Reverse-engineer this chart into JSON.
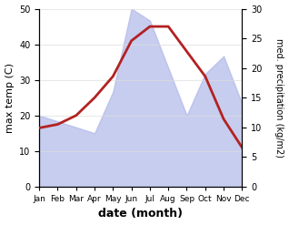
{
  "months": [
    "Jan",
    "Feb",
    "Mar",
    "Apr",
    "May",
    "Jun",
    "Jul",
    "Aug",
    "Sep",
    "Oct",
    "Nov",
    "Dec"
  ],
  "temp": [
    16.5,
    17.5,
    20,
    25,
    31,
    41,
    45,
    45,
    38,
    31,
    19,
    11
  ],
  "precip": [
    12,
    11,
    10,
    9,
    16,
    30,
    28,
    20,
    12,
    19,
    22,
    14
  ],
  "temp_color": "#b22222",
  "precip_fill_color": "#b0b8e8",
  "xlabel": "date (month)",
  "ylabel_left": "max temp (C)",
  "ylabel_right": "med. precipitation (kg/m2)",
  "ylim_left": [
    0,
    50
  ],
  "ylim_right": [
    0,
    30
  ],
  "yticks_left": [
    0,
    10,
    20,
    30,
    40,
    50
  ],
  "yticks_right": [
    0,
    5,
    10,
    15,
    20,
    25,
    30
  ],
  "bg_color": "#ffffff",
  "temp_linewidth": 2.0
}
